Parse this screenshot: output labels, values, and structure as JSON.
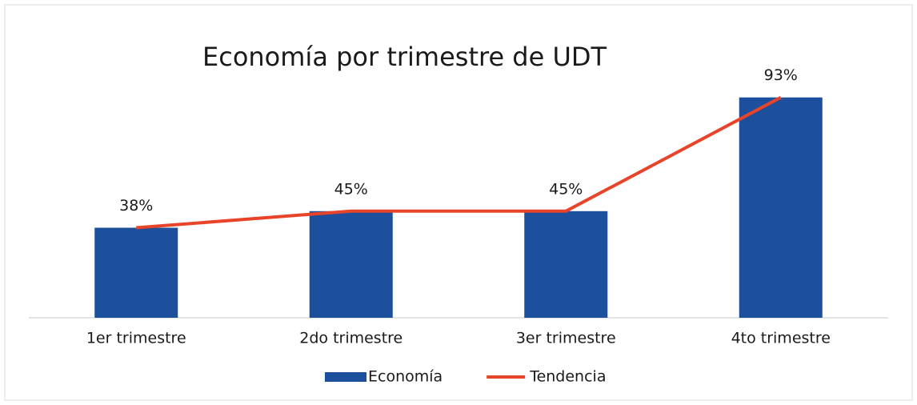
{
  "chart_data": {
    "type": "bar-line",
    "title": "Economía por trimestre de UDT",
    "categories": [
      "1er trimestre",
      "2do trimestre",
      "3er trimestre",
      "4to trimestre"
    ],
    "series": [
      {
        "name": "Economía",
        "type": "bar",
        "color": "#1c4f9c",
        "values": [
          38,
          45,
          45,
          93
        ],
        "value_labels": [
          "38%",
          "45%",
          "45%",
          "93%"
        ]
      },
      {
        "name": "Tendencia",
        "type": "line",
        "color": "#e8442a",
        "values": [
          38,
          45,
          45,
          93
        ]
      }
    ],
    "ylim": [
      0,
      100
    ],
    "legend": "bottom"
  }
}
